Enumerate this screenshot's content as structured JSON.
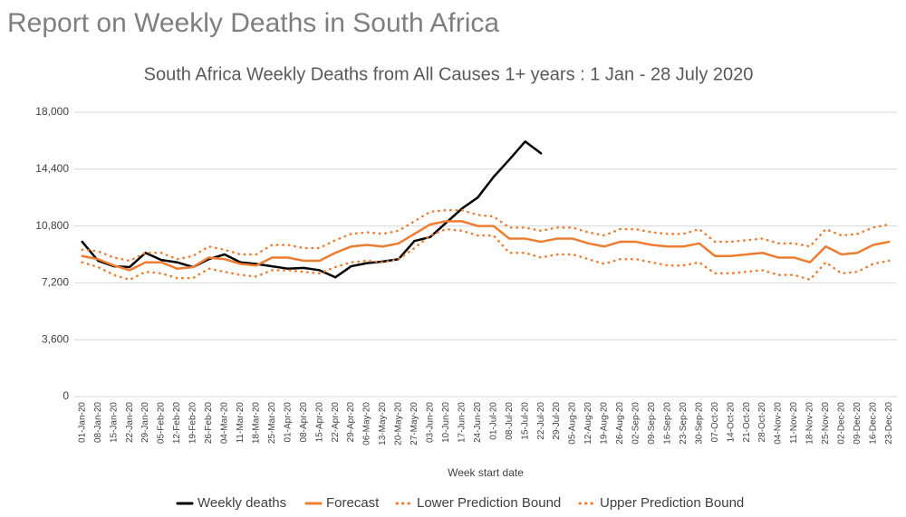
{
  "page_title": "Report on Weekly Deaths in South Africa",
  "chart_data": {
    "type": "line",
    "title": "South Africa Weekly Deaths from All Causes 1+ years : 1 Jan  - 28 July 2020",
    "x_label": "Week start date",
    "categories": [
      "01-Jan-20",
      "08-Jan-20",
      "15-Jan-20",
      "22-Jan-20",
      "29-Jan-20",
      "05-Feb-20",
      "12-Feb-20",
      "19-Feb-20",
      "26-Feb-20",
      "04-Mar-20",
      "11-Mar-20",
      "18-Mar-20",
      "25-Mar-20",
      "01-Apr-20",
      "08-Apr-20",
      "15-Apr-20",
      "22-Apr-20",
      "29-Apr-20",
      "06-May-20",
      "13-May-20",
      "20-May-20",
      "27-May-20",
      "03-Jun-20",
      "10-Jun-20",
      "17-Jun-20",
      "24-Jun-20",
      "01-Jul-20",
      "08-Jul-20",
      "15-Jul-20",
      "22-Jul-20",
      "29-Jul-20",
      "05-Aug-20",
      "12-Aug-20",
      "19-Aug-20",
      "26-Aug-20",
      "02-Sep-20",
      "09-Sep-20",
      "16-Sep-20",
      "23-Sep-20",
      "30-Sep-20",
      "07-Oct-20",
      "14-Oct-20",
      "21-Oct-20",
      "28-Oct-20",
      "04-Nov-20",
      "11-Nov-20",
      "18-Nov-20",
      "25-Nov-20",
      "02-Dec-20",
      "09-Dec-20",
      "16-Dec-20",
      "23-Dec-20"
    ],
    "series": [
      {
        "name": "Weekly deaths",
        "color": "#000000",
        "style": "solid",
        "values": [
          9800,
          8600,
          8250,
          8200,
          9100,
          8650,
          8500,
          8200,
          8700,
          9000,
          8500,
          8400,
          8250,
          8100,
          8150,
          8000,
          7550,
          8250,
          8450,
          8550,
          8700,
          9850,
          10100,
          11000,
          11900,
          12600,
          13900,
          15000,
          16150,
          15400,
          null,
          null,
          null,
          null,
          null,
          null,
          null,
          null,
          null,
          null,
          null,
          null,
          null,
          null,
          null,
          null,
          null,
          null,
          null,
          null,
          null,
          null
        ]
      },
      {
        "name": "Forecast",
        "color": "#ed7d31",
        "style": "solid",
        "values": [
          8900,
          8700,
          8300,
          8000,
          8500,
          8500,
          8100,
          8200,
          8800,
          8700,
          8400,
          8300,
          8800,
          8800,
          8600,
          8600,
          9100,
          9500,
          9600,
          9500,
          9700,
          10300,
          10900,
          11100,
          11100,
          10800,
          10800,
          10000,
          10000,
          9800,
          10000,
          10000,
          9700,
          9500,
          9800,
          9800,
          9600,
          9500,
          9500,
          9700,
          8900,
          8900,
          9000,
          9100,
          8800,
          8800,
          8500,
          9500,
          9000,
          9100,
          9600,
          9800
        ]
      },
      {
        "name": "Lower Prediction Bound",
        "color": "#ed7d31",
        "style": "dotted",
        "values": [
          8500,
          8200,
          7700,
          7400,
          7900,
          7800,
          7500,
          7500,
          8100,
          7900,
          7700,
          7600,
          8000,
          8000,
          7900,
          7800,
          8200,
          8500,
          8600,
          8500,
          8700,
          9400,
          10200,
          10600,
          10500,
          10200,
          10200,
          9100,
          9100,
          8800,
          9000,
          9000,
          8700,
          8400,
          8700,
          8700,
          8500,
          8300,
          8300,
          8500,
          7800,
          7800,
          7900,
          8000,
          7700,
          7700,
          7400,
          8500,
          7800,
          7900,
          8400,
          8600
        ]
      },
      {
        "name": "Upper Prediction Bound",
        "color": "#ed7d31",
        "style": "dotted",
        "values": [
          9300,
          9200,
          8800,
          8600,
          9100,
          9100,
          8700,
          8900,
          9500,
          9300,
          9000,
          9000,
          9600,
          9600,
          9400,
          9400,
          9900,
          10300,
          10400,
          10300,
          10500,
          11100,
          11700,
          11800,
          11800,
          11500,
          11400,
          10700,
          10700,
          10500,
          10700,
          10700,
          10400,
          10200,
          10600,
          10600,
          10400,
          10300,
          10300,
          10600,
          9800,
          9800,
          9900,
          10000,
          9700,
          9700,
          9500,
          10600,
          10200,
          10300,
          10700,
          10900
        ]
      }
    ],
    "ylim": [
      0,
      18000
    ],
    "yticks": [
      0,
      {
        "value": 3600,
        "label": "3,600"
      },
      {
        "value": 7200,
        "label": "7,200"
      },
      {
        "value": 10800,
        "label": "10,800"
      },
      {
        "value": 14400,
        "label": "14,400"
      },
      {
        "value": 18000,
        "label": "18,000"
      }
    ],
    "grid": true,
    "legend": "bottom"
  }
}
